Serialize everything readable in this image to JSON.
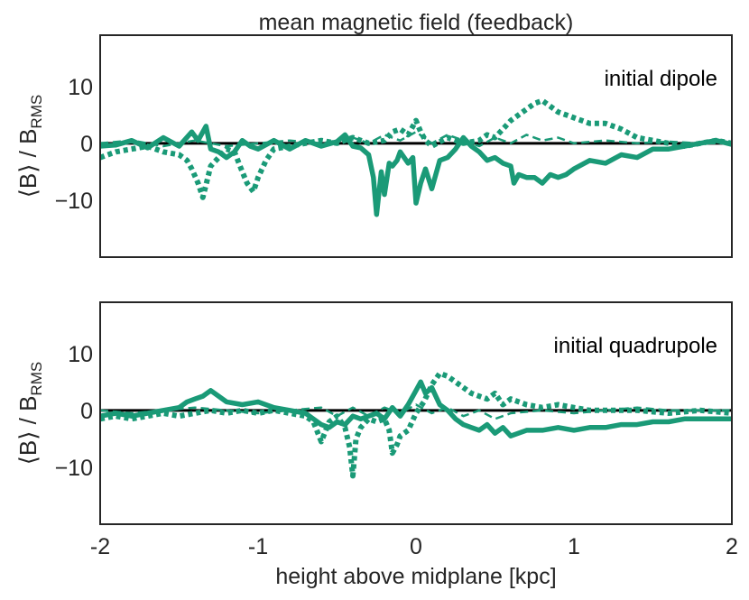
{
  "chart_data": {
    "type": "line",
    "title": "mean magnetic field (feedback)",
    "xlabel": "height above midplane [kpc]",
    "ylabel_main": "⟨B⟩ / B",
    "ylabel_sub": "RMS",
    "xlim": [
      -2,
      2
    ],
    "ylim": [
      -20,
      19
    ],
    "x_ticks": [
      -2,
      -1,
      0,
      1,
      2
    ],
    "x_tick_labels": [
      "-2",
      "-1",
      "0",
      "1",
      "2"
    ],
    "y_ticks": [
      10,
      0,
      -10
    ],
    "y_tick_labels": [
      "10",
      "0",
      "−10"
    ],
    "line_color": "#1a9a77",
    "zero_color": "#000000",
    "panels": [
      {
        "annotation": "initial dipole",
        "series": [
          {
            "name": "solid component",
            "style": "solid",
            "x": [
              -2.0,
              -1.9,
              -1.8,
              -1.7,
              -1.6,
              -1.5,
              -1.42,
              -1.38,
              -1.33,
              -1.3,
              -1.25,
              -1.2,
              -1.15,
              -1.1,
              -1.05,
              -1.0,
              -0.9,
              -0.8,
              -0.7,
              -0.6,
              -0.5,
              -0.45,
              -0.4,
              -0.35,
              -0.3,
              -0.27,
              -0.25,
              -0.22,
              -0.2,
              -0.17,
              -0.15,
              -0.12,
              -0.1,
              -0.05,
              -0.02,
              0.0,
              0.03,
              0.06,
              0.1,
              0.15,
              0.2,
              0.25,
              0.3,
              0.35,
              0.4,
              0.45,
              0.5,
              0.55,
              0.6,
              0.62,
              0.65,
              0.7,
              0.75,
              0.8,
              0.85,
              0.9,
              0.95,
              1.0,
              1.1,
              1.2,
              1.3,
              1.4,
              1.5,
              1.6,
              1.7,
              1.8,
              1.9,
              2.0
            ],
            "y": [
              -0.5,
              -0.3,
              0.5,
              -0.8,
              1.0,
              -0.5,
              2.0,
              0.5,
              3.0,
              -1.0,
              -1.5,
              -2.5,
              -1.5,
              0.5,
              -0.5,
              -1.0,
              0.5,
              -1.0,
              0.5,
              -0.5,
              0.3,
              1.5,
              -0.5,
              -0.8,
              -2.0,
              -6.0,
              -12.5,
              -5.0,
              -9.0,
              -3.5,
              -4.0,
              -3.0,
              -1.5,
              -3.5,
              -2.5,
              -10.5,
              -7.0,
              -4.5,
              -8.0,
              -3.0,
              -2.5,
              -1.0,
              1.0,
              -0.5,
              -1.5,
              -3.0,
              -2.5,
              -3.5,
              -4.0,
              -7.0,
              -5.5,
              -6.0,
              -6.0,
              -7.0,
              -5.5,
              -6.0,
              -5.5,
              -4.5,
              -3.0,
              -3.5,
              -2.0,
              -2.5,
              -1.0,
              -1.0,
              -0.5,
              0.0,
              0.5,
              -0.2
            ]
          },
          {
            "name": "dotted component",
            "style": "dotted",
            "x": [
              -2.0,
              -1.9,
              -1.8,
              -1.7,
              -1.6,
              -1.5,
              -1.45,
              -1.42,
              -1.38,
              -1.35,
              -1.3,
              -1.25,
              -1.2,
              -1.15,
              -1.1,
              -1.07,
              -1.03,
              -1.0,
              -0.95,
              -0.9,
              -0.8,
              -0.7,
              -0.6,
              -0.5,
              -0.4,
              -0.3,
              -0.2,
              -0.15,
              -0.1,
              -0.05,
              0.0,
              0.03,
              0.06,
              0.1,
              0.2,
              0.3,
              0.4,
              0.45,
              0.5,
              0.55,
              0.6,
              0.65,
              0.7,
              0.75,
              0.8,
              0.85,
              0.9,
              0.95,
              1.0,
              1.1,
              1.2,
              1.3,
              1.4,
              1.5,
              1.6,
              1.7,
              1.8,
              1.9,
              2.0
            ],
            "y": [
              -2.5,
              -1.5,
              -1.0,
              -0.5,
              -1.5,
              -2.0,
              -3.0,
              -4.5,
              -7.0,
              -9.5,
              -4.0,
              -2.5,
              -1.0,
              -1.5,
              -5.0,
              -7.0,
              -8.5,
              -6.0,
              -3.0,
              -1.0,
              -0.5,
              0.0,
              0.5,
              0.0,
              1.0,
              0.0,
              0.5,
              2.0,
              2.5,
              1.5,
              4.0,
              2.0,
              0.5,
              -0.5,
              1.0,
              0.0,
              0.5,
              1.5,
              1.0,
              2.5,
              4.0,
              5.0,
              6.0,
              7.0,
              7.5,
              6.5,
              5.5,
              5.0,
              4.5,
              3.5,
              3.5,
              2.5,
              1.0,
              0.5,
              0.0,
              -0.5,
              0.0,
              0.5,
              0.0
            ]
          },
          {
            "name": "dashed component",
            "style": "dashed",
            "x": [
              -2.0,
              -1.8,
              -1.6,
              -1.4,
              -1.2,
              -1.0,
              -0.8,
              -0.6,
              -0.4,
              -0.3,
              -0.2,
              -0.1,
              0.0,
              0.1,
              0.2,
              0.3,
              0.4,
              0.5,
              0.6,
              0.7,
              0.8,
              0.9,
              1.0,
              1.2,
              1.4,
              1.6,
              1.8,
              2.0
            ],
            "y": [
              0.0,
              0.5,
              -0.5,
              0.5,
              -0.5,
              0.0,
              0.5,
              0.0,
              1.0,
              0.0,
              1.5,
              0.5,
              2.0,
              0.0,
              1.5,
              0.5,
              -0.5,
              1.0,
              0.0,
              1.5,
              0.5,
              1.0,
              0.0,
              0.5,
              0.0,
              0.3,
              0.0,
              0.0
            ]
          }
        ]
      },
      {
        "annotation": "initial quadrupole",
        "series": [
          {
            "name": "solid component",
            "style": "solid",
            "x": [
              -2.0,
              -1.9,
              -1.8,
              -1.7,
              -1.6,
              -1.5,
              -1.45,
              -1.4,
              -1.35,
              -1.3,
              -1.25,
              -1.2,
              -1.1,
              -1.0,
              -0.9,
              -0.8,
              -0.7,
              -0.65,
              -0.6,
              -0.55,
              -0.5,
              -0.45,
              -0.4,
              -0.35,
              -0.3,
              -0.25,
              -0.2,
              -0.15,
              -0.1,
              -0.05,
              0.0,
              0.03,
              0.06,
              0.1,
              0.15,
              0.2,
              0.25,
              0.3,
              0.35,
              0.4,
              0.45,
              0.5,
              0.55,
              0.6,
              0.7,
              0.8,
              0.9,
              1.0,
              1.1,
              1.2,
              1.3,
              1.4,
              1.5,
              1.6,
              1.7,
              1.8,
              1.9,
              2.0
            ],
            "y": [
              -1.0,
              -0.5,
              -1.0,
              -0.5,
              0.0,
              0.5,
              1.5,
              2.0,
              2.5,
              3.5,
              2.5,
              1.5,
              1.0,
              1.5,
              0.5,
              0.0,
              -0.5,
              -1.5,
              -2.5,
              -3.0,
              -2.0,
              -2.5,
              -1.0,
              -1.5,
              -1.0,
              -0.5,
              -1.5,
              0.5,
              -1.0,
              1.0,
              3.5,
              5.0,
              3.0,
              4.0,
              1.0,
              0.0,
              -1.5,
              -2.5,
              -3.0,
              -3.5,
              -2.5,
              -4.0,
              -3.0,
              -4.5,
              -3.5,
              -3.5,
              -3.0,
              -3.5,
              -3.0,
              -3.0,
              -2.5,
              -2.5,
              -2.0,
              -2.0,
              -1.5,
              -1.5,
              -1.5,
              -1.5
            ]
          },
          {
            "name": "dotted component",
            "style": "dotted",
            "x": [
              -2.0,
              -1.9,
              -1.8,
              -1.7,
              -1.6,
              -1.5,
              -1.4,
              -1.3,
              -1.2,
              -1.1,
              -1.0,
              -0.9,
              -0.8,
              -0.7,
              -0.65,
              -0.6,
              -0.55,
              -0.5,
              -0.45,
              -0.42,
              -0.4,
              -0.38,
              -0.35,
              -0.3,
              -0.25,
              -0.2,
              -0.17,
              -0.15,
              -0.12,
              -0.1,
              -0.05,
              0.0,
              0.05,
              0.1,
              0.15,
              0.2,
              0.25,
              0.3,
              0.35,
              0.4,
              0.45,
              0.5,
              0.55,
              0.6,
              0.7,
              0.8,
              0.9,
              1.0,
              1.1,
              1.2,
              1.4,
              1.6,
              1.8,
              2.0
            ],
            "y": [
              -1.5,
              -1.0,
              -1.5,
              -1.0,
              -0.5,
              -1.0,
              -0.5,
              0.0,
              -0.5,
              0.0,
              -0.5,
              0.0,
              -0.5,
              -1.0,
              -2.0,
              -5.5,
              -2.0,
              -1.0,
              -3.0,
              -6.5,
              -11.5,
              -5.0,
              -3.0,
              -1.5,
              -2.0,
              -1.5,
              -3.5,
              -7.5,
              -6.0,
              -4.5,
              -3.5,
              -0.5,
              1.5,
              4.5,
              6.5,
              6.0,
              5.0,
              4.0,
              3.0,
              2.5,
              2.0,
              3.0,
              1.0,
              2.0,
              1.0,
              0.5,
              1.0,
              0.5,
              0.0,
              0.0,
              0.0,
              -0.5,
              0.0,
              -0.5
            ]
          },
          {
            "name": "dashed component",
            "style": "dashed",
            "x": [
              -2.0,
              -1.8,
              -1.6,
              -1.4,
              -1.2,
              -1.0,
              -0.8,
              -0.6,
              -0.5,
              -0.4,
              -0.3,
              -0.2,
              -0.1,
              0.0,
              0.1,
              0.2,
              0.3,
              0.4,
              0.5,
              0.6,
              0.8,
              1.0,
              1.2,
              1.4,
              1.6,
              1.8,
              2.0
            ],
            "y": [
              0.0,
              -0.5,
              0.0,
              0.5,
              0.0,
              -0.5,
              0.0,
              0.5,
              -1.0,
              0.5,
              -1.0,
              0.5,
              -0.5,
              1.0,
              -0.5,
              0.5,
              -1.0,
              0.0,
              -1.5,
              -0.5,
              0.0,
              -0.5,
              0.0,
              0.5,
              0.0,
              0.0,
              0.0
            ]
          }
        ]
      }
    ]
  }
}
